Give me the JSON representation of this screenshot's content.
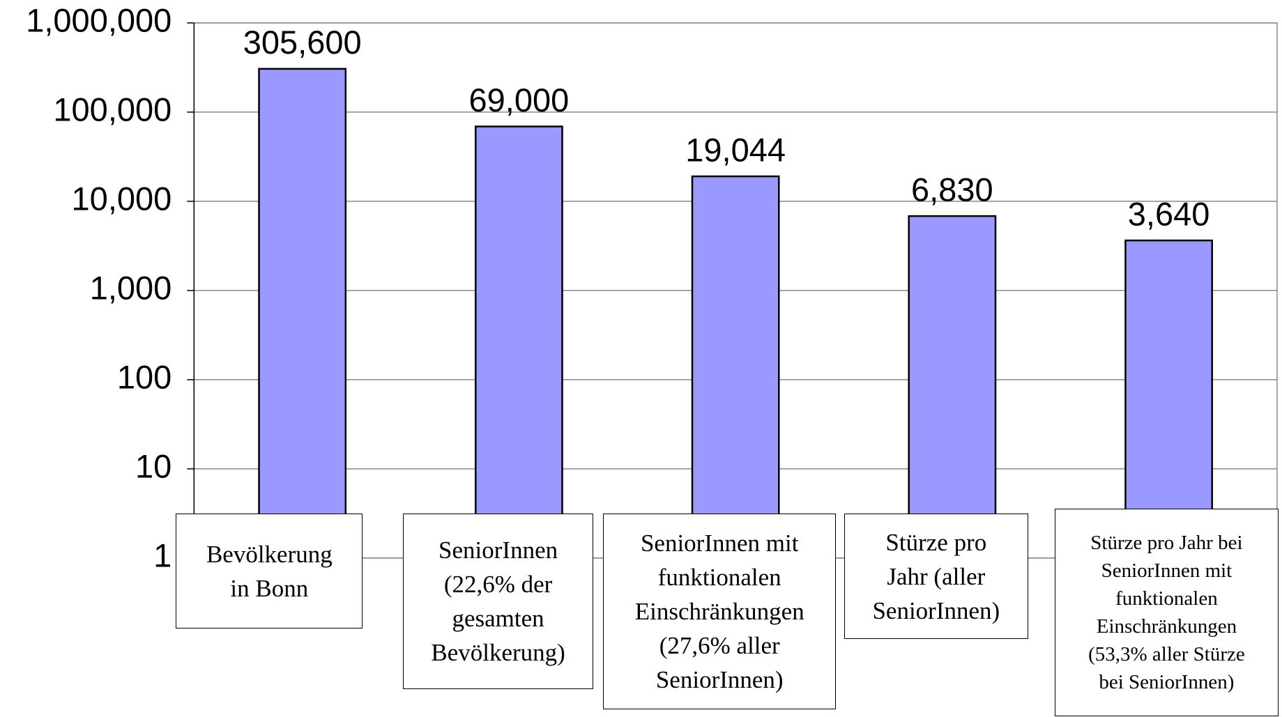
{
  "chart_data": {
    "type": "bar",
    "log_scale": true,
    "grid": true,
    "color": "#9999ff",
    "categories": [
      "Bevölkerung\nin Bonn",
      "SeniorInnen\n(22,6% der\ngesamten\nBevölkerung)",
      "SeniorInnen mit\nfunktionalen\nEinschränkungen\n(27,6% aller\nSeniorInnen)",
      "Stürze pro\nJahr (aller\nSeniorInnen)",
      "Stürze pro Jahr bei\nSeniorInnen mit\nfunktionalen\nEinschränkungen\n(53,3% aller Stürze\nbei SeniorInnen)"
    ],
    "values": [
      305600,
      69000,
      19044,
      6830,
      3640
    ],
    "value_labels": [
      "305,600",
      "69,000",
      "19,044",
      "6,830",
      "3,640"
    ],
    "ylim": [
      1,
      1000000
    ],
    "yticks": [
      1,
      10,
      100,
      {
        "value": 1000,
        "label": "1,000"
      },
      {
        "value": 10000,
        "label": "10,000"
      },
      {
        "value": 100000,
        "label": "100,000"
      },
      {
        "value": 1000000,
        "label": "1,000,000"
      }
    ]
  }
}
